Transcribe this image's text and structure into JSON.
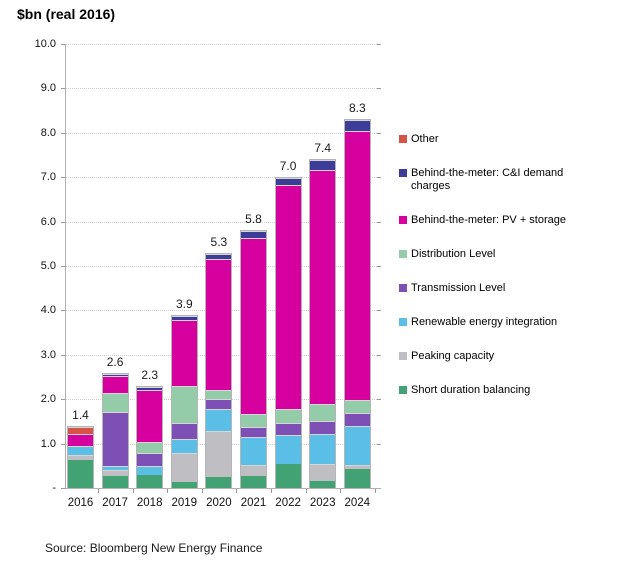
{
  "title": "$bn (real 2016)",
  "source": "Source: Bloomberg New Energy Finance",
  "chart_data": {
    "type": "bar",
    "stacked": true,
    "title": "$bn (real 2016)",
    "grid": "dotted horizontal gridlines at each 1.0",
    "legend_position": "right",
    "categories": [
      "2016",
      "2017",
      "2018",
      "2019",
      "2020",
      "2021",
      "2022",
      "2023",
      "2024"
    ],
    "totals_display": [
      "1.4",
      "2.6",
      "2.3",
      "3.9",
      "5.3",
      "5.8",
      "7.0",
      "7.4",
      "8.3"
    ],
    "y_axis": {
      "min": 0,
      "max": 10,
      "step": 1,
      "tick_labels": [
        "10.0",
        "9.0",
        "8.0",
        "7.0",
        "6.0",
        "5.0",
        "4.0",
        "3.0",
        "2.0",
        "1.0",
        "-"
      ]
    },
    "series": [
      {
        "name": "Short duration balancing",
        "slug": "short-duration-balancing",
        "color": "#43A273",
        "values": [
          0.65,
          0.28,
          0.29,
          0.13,
          0.25,
          0.28,
          0.54,
          0.16,
          0.44
        ]
      },
      {
        "name": "Peaking capacity",
        "slug": "peaking-capacity",
        "color": "#BFBEC2",
        "values": [
          0.1,
          0.12,
          0.0,
          0.67,
          1.05,
          0.24,
          0.0,
          0.38,
          0.08
        ]
      },
      {
        "name": "Renewable energy integration",
        "slug": "renewable-energy-integration",
        "color": "#5BBEE6",
        "values": [
          0.21,
          0.1,
          0.21,
          0.3,
          0.49,
          0.63,
          0.65,
          0.69,
          0.87
        ]
      },
      {
        "name": "Transmission Level",
        "slug": "transmission-level",
        "color": "#7E4FB5",
        "values": [
          0.0,
          1.23,
          0.3,
          0.38,
          0.23,
          0.23,
          0.28,
          0.28,
          0.3
        ]
      },
      {
        "name": "Distribution Level",
        "slug": "distribution-level",
        "color": "#94CBA8",
        "values": [
          0.0,
          0.43,
          0.24,
          0.83,
          0.2,
          0.3,
          0.32,
          0.39,
          0.3
        ]
      },
      {
        "name": "Behind-the-meter: PV + storage",
        "slug": "behind-the-meter-pv-storage",
        "color": "#D5009E",
        "values": [
          0.27,
          0.38,
          1.2,
          1.5,
          2.95,
          3.97,
          5.05,
          5.29,
          6.07
        ]
      },
      {
        "name": "Behind-the-meter: C&I demand charges",
        "slug": "behind-the-meter-ci-demand-charges",
        "color": "#3C3D99",
        "values": [
          0.0,
          0.06,
          0.06,
          0.09,
          0.13,
          0.15,
          0.16,
          0.21,
          0.24
        ]
      },
      {
        "name": "Other",
        "slug": "other",
        "color": "#D65348",
        "values": [
          0.17,
          0.0,
          0.0,
          0.0,
          0.0,
          0.0,
          0.0,
          0.0,
          0.0
        ]
      }
    ]
  }
}
